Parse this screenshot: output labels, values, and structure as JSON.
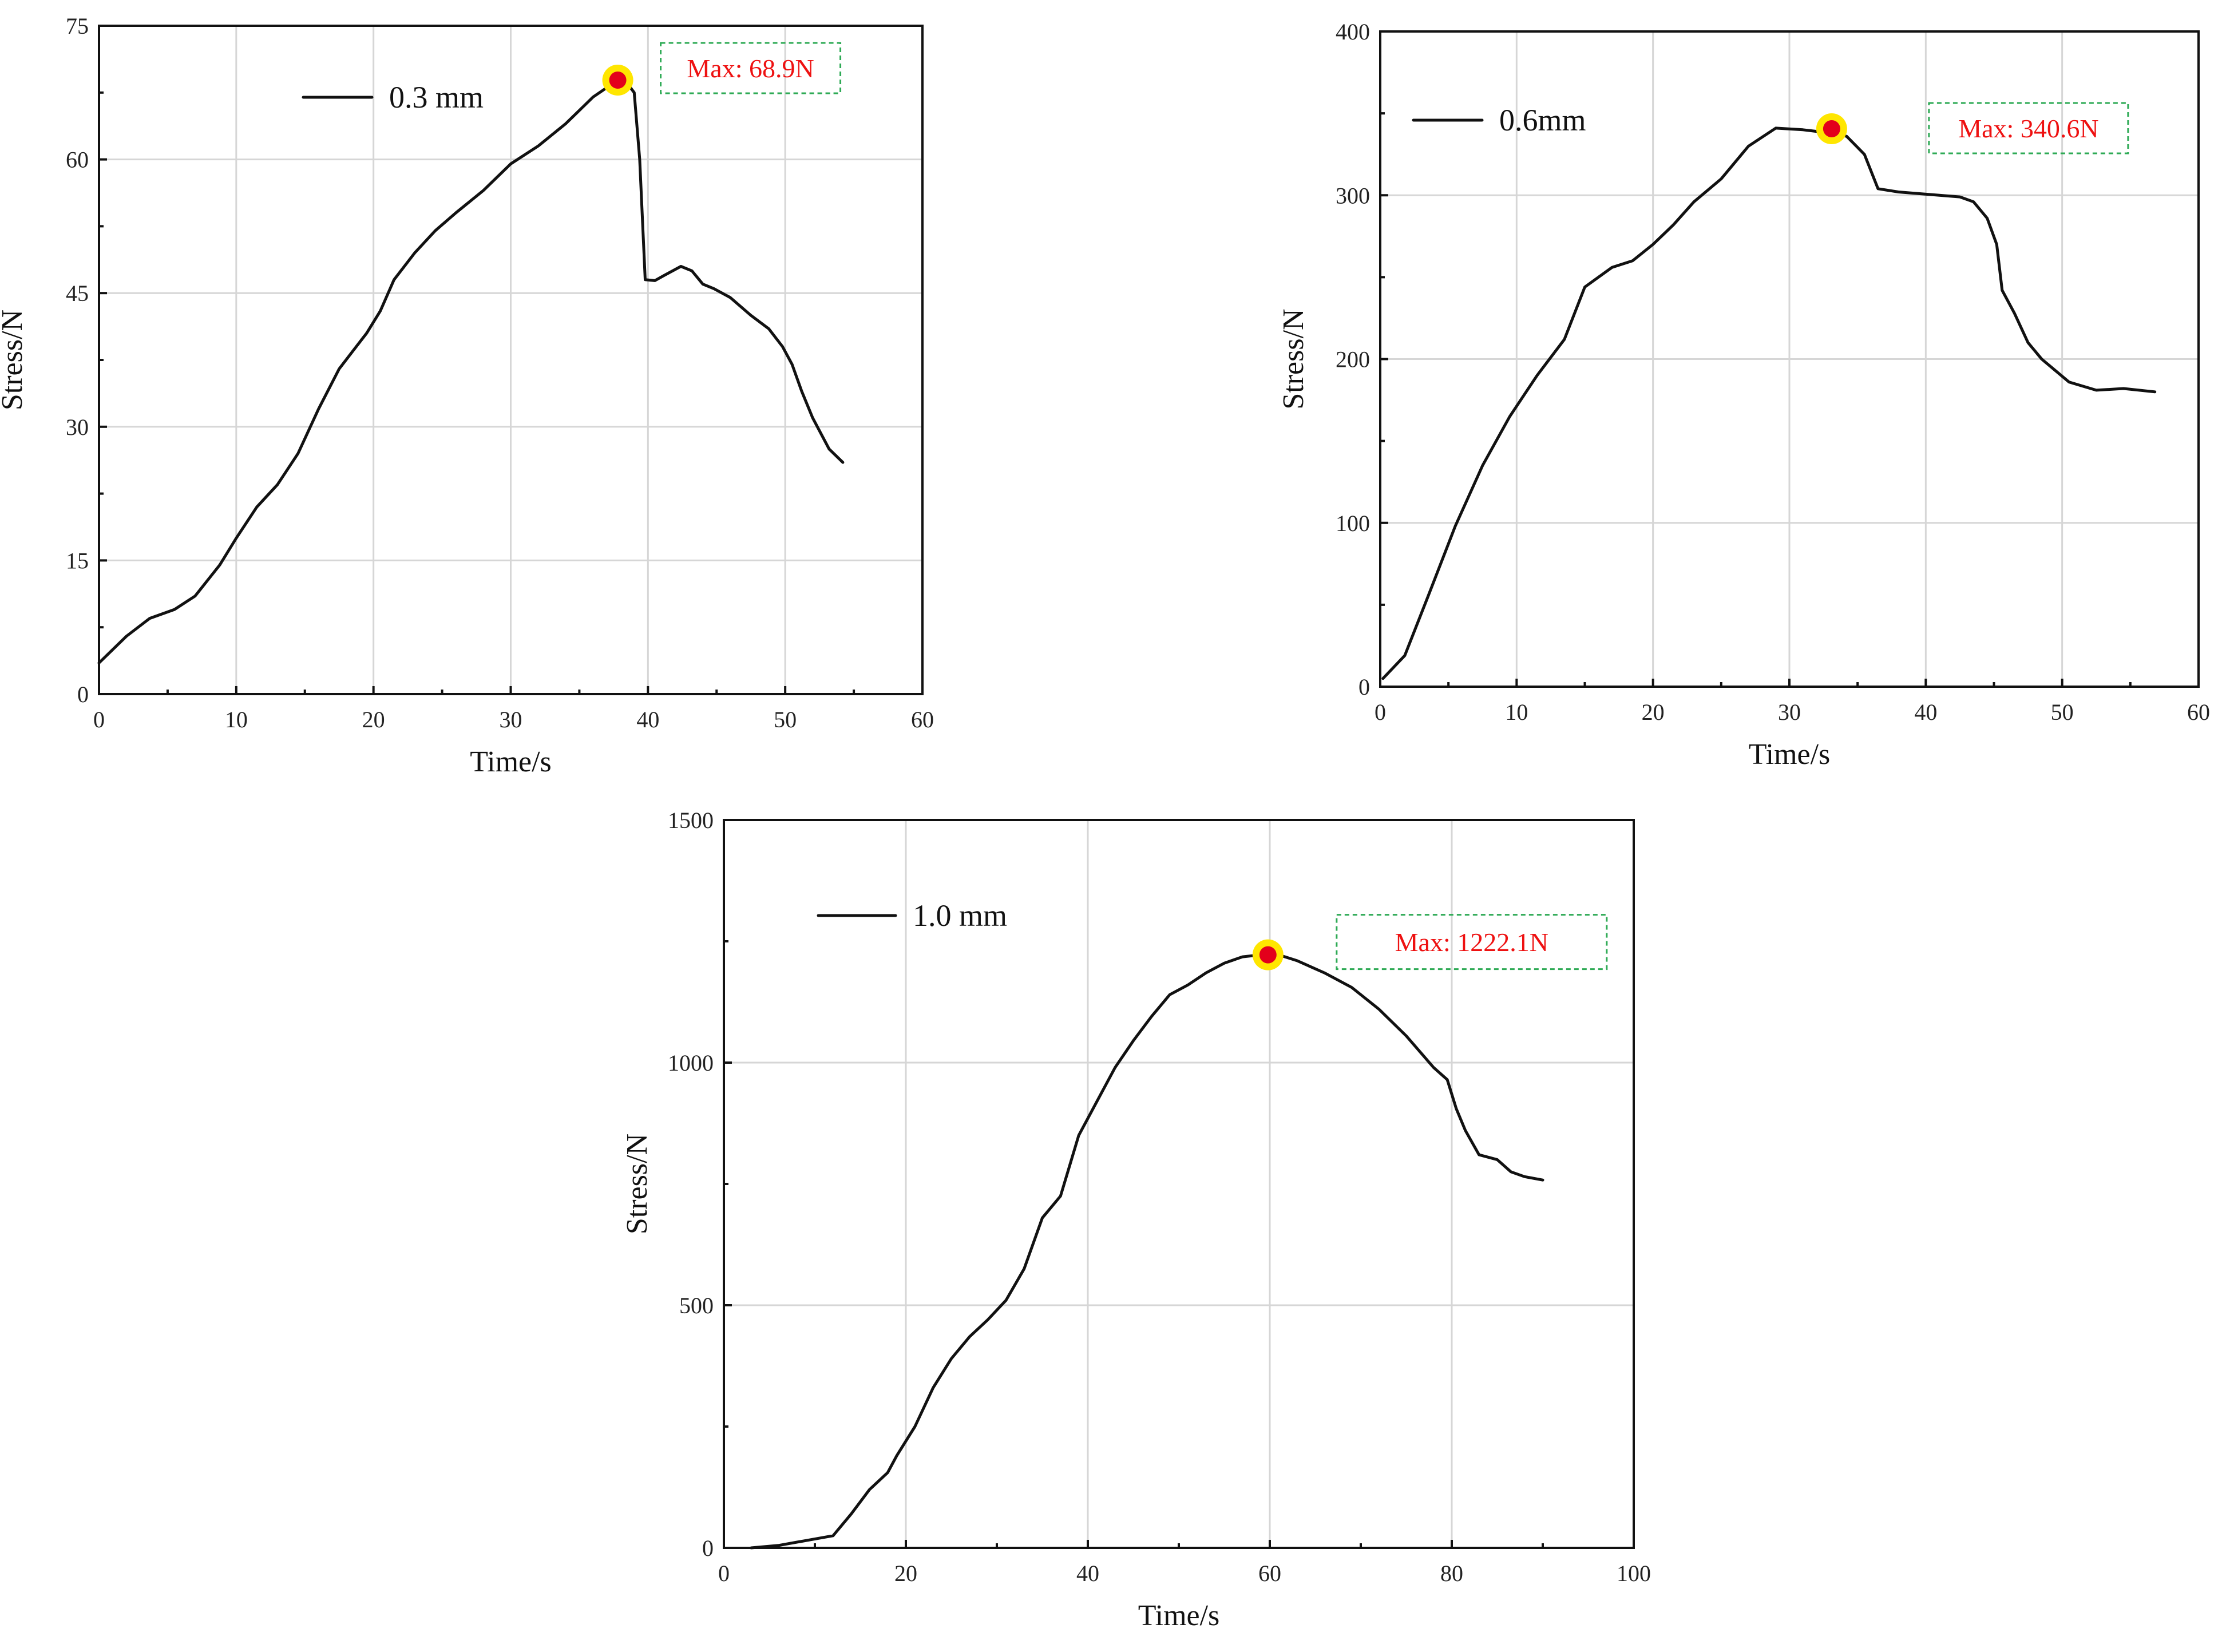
{
  "chart_data": [
    {
      "type": "line",
      "xlabel": "Time/s",
      "ylabel": "Stress/N",
      "xlim": [
        0,
        60
      ],
      "ylim": [
        0,
        75
      ],
      "xticks": [
        0,
        10,
        20,
        30,
        40,
        50,
        60
      ],
      "yticks": [
        0,
        15,
        30,
        45,
        60,
        75
      ],
      "grid": true,
      "legend": "top-left",
      "series": [
        {
          "name": "0.3 mm",
          "x": [
            0,
            2,
            3.7,
            5.5,
            7,
            8.8,
            10,
            11.5,
            13,
            14.5,
            16,
            17.5,
            18.5,
            19.5,
            20.5,
            21.5,
            23,
            24.5,
            26,
            28,
            30,
            32,
            34,
            36,
            37.8,
            38.5,
            39,
            39.4,
            39.8,
            40.5,
            41.2,
            42.4,
            43.2,
            44,
            44.8,
            46,
            47.5,
            48.8,
            49.8,
            50.5,
            51.2,
            52,
            53.2,
            54.2
          ],
          "y": [
            3.5,
            6.5,
            8.5,
            9.5,
            11,
            14.5,
            17.5,
            21,
            23.5,
            27,
            32,
            36.5,
            38.5,
            40.5,
            43,
            46.5,
            49.5,
            52,
            54,
            56.5,
            59.5,
            61.5,
            64,
            67,
            68.9,
            68.5,
            67.5,
            60,
            46.5,
            46.4,
            47,
            48,
            47.5,
            46,
            45.5,
            44.5,
            42.5,
            41,
            39,
            37,
            34,
            31,
            27.5,
            26
          ]
        }
      ],
      "max_point": {
        "x": 37.8,
        "y": 68.9,
        "label": "Max: 68.9N"
      }
    },
    {
      "type": "line",
      "xlabel": "Time/s",
      "ylabel": "Stress/N",
      "xlim": [
        0,
        60
      ],
      "ylim": [
        0,
        400
      ],
      "xticks": [
        0,
        10,
        20,
        30,
        40,
        50,
        60
      ],
      "yticks": [
        0,
        100,
        200,
        300,
        400
      ],
      "grid": true,
      "legend": "top-left",
      "series": [
        {
          "name": "0.6mm",
          "x": [
            0.2,
            1.8,
            3.5,
            5.5,
            7.5,
            9.5,
            11.5,
            13.5,
            15,
            17,
            18.5,
            20,
            21.5,
            23,
            25,
            27,
            29,
            31,
            33,
            34.2,
            35.5,
            36.5,
            38,
            39.5,
            41,
            42.5,
            43.5,
            44.5,
            45.2,
            45.6,
            46.5,
            47.5,
            48.5,
            50.5,
            52.5,
            54.5,
            56.8
          ],
          "y": [
            5,
            19,
            55,
            98,
            135,
            165,
            190,
            212,
            244,
            256,
            260,
            270,
            282,
            296,
            310,
            330,
            341,
            340,
            338,
            336,
            325,
            304,
            302,
            301,
            300,
            299,
            296,
            286,
            270,
            242,
            228,
            210,
            200,
            186,
            181,
            182,
            180
          ]
        }
      ],
      "max_point": {
        "x": 33.1,
        "y": 340.6,
        "label": "Max: 340.6N"
      }
    },
    {
      "type": "line",
      "xlabel": "Time/s",
      "ylabel": "Stress/N",
      "xlim": [
        0,
        100
      ],
      "ylim": [
        0,
        1500
      ],
      "xticks": [
        0,
        20,
        40,
        60,
        80,
        100
      ],
      "yticks": [
        0,
        500,
        1000,
        1500
      ],
      "grid": true,
      "legend": "top-left",
      "series": [
        {
          "name": "1.0 mm",
          "x": [
            3,
            6,
            9,
            12,
            14,
            16,
            18,
            19,
            21,
            23,
            25,
            27,
            29,
            31,
            33,
            35,
            37,
            39,
            41,
            43,
            45,
            47,
            49,
            51,
            53,
            55,
            57,
            59,
            61,
            63,
            66,
            69,
            72,
            75,
            78,
            79.5,
            80.5,
            81.5,
            83,
            85,
            86.5,
            88,
            90
          ],
          "y": [
            0,
            5,
            15,
            25,
            70,
            120,
            155,
            190,
            250,
            330,
            390,
            435,
            470,
            510,
            575,
            680,
            725,
            850,
            920,
            990,
            1045,
            1095,
            1140,
            1160,
            1185,
            1205,
            1218,
            1222,
            1222,
            1210,
            1185,
            1155,
            1110,
            1055,
            990,
            965,
            905,
            860,
            810,
            800,
            775,
            765,
            758
          ]
        }
      ],
      "max_point": {
        "x": 59.8,
        "y": 1222.1,
        "label": "Max: 1222.1N"
      }
    }
  ]
}
